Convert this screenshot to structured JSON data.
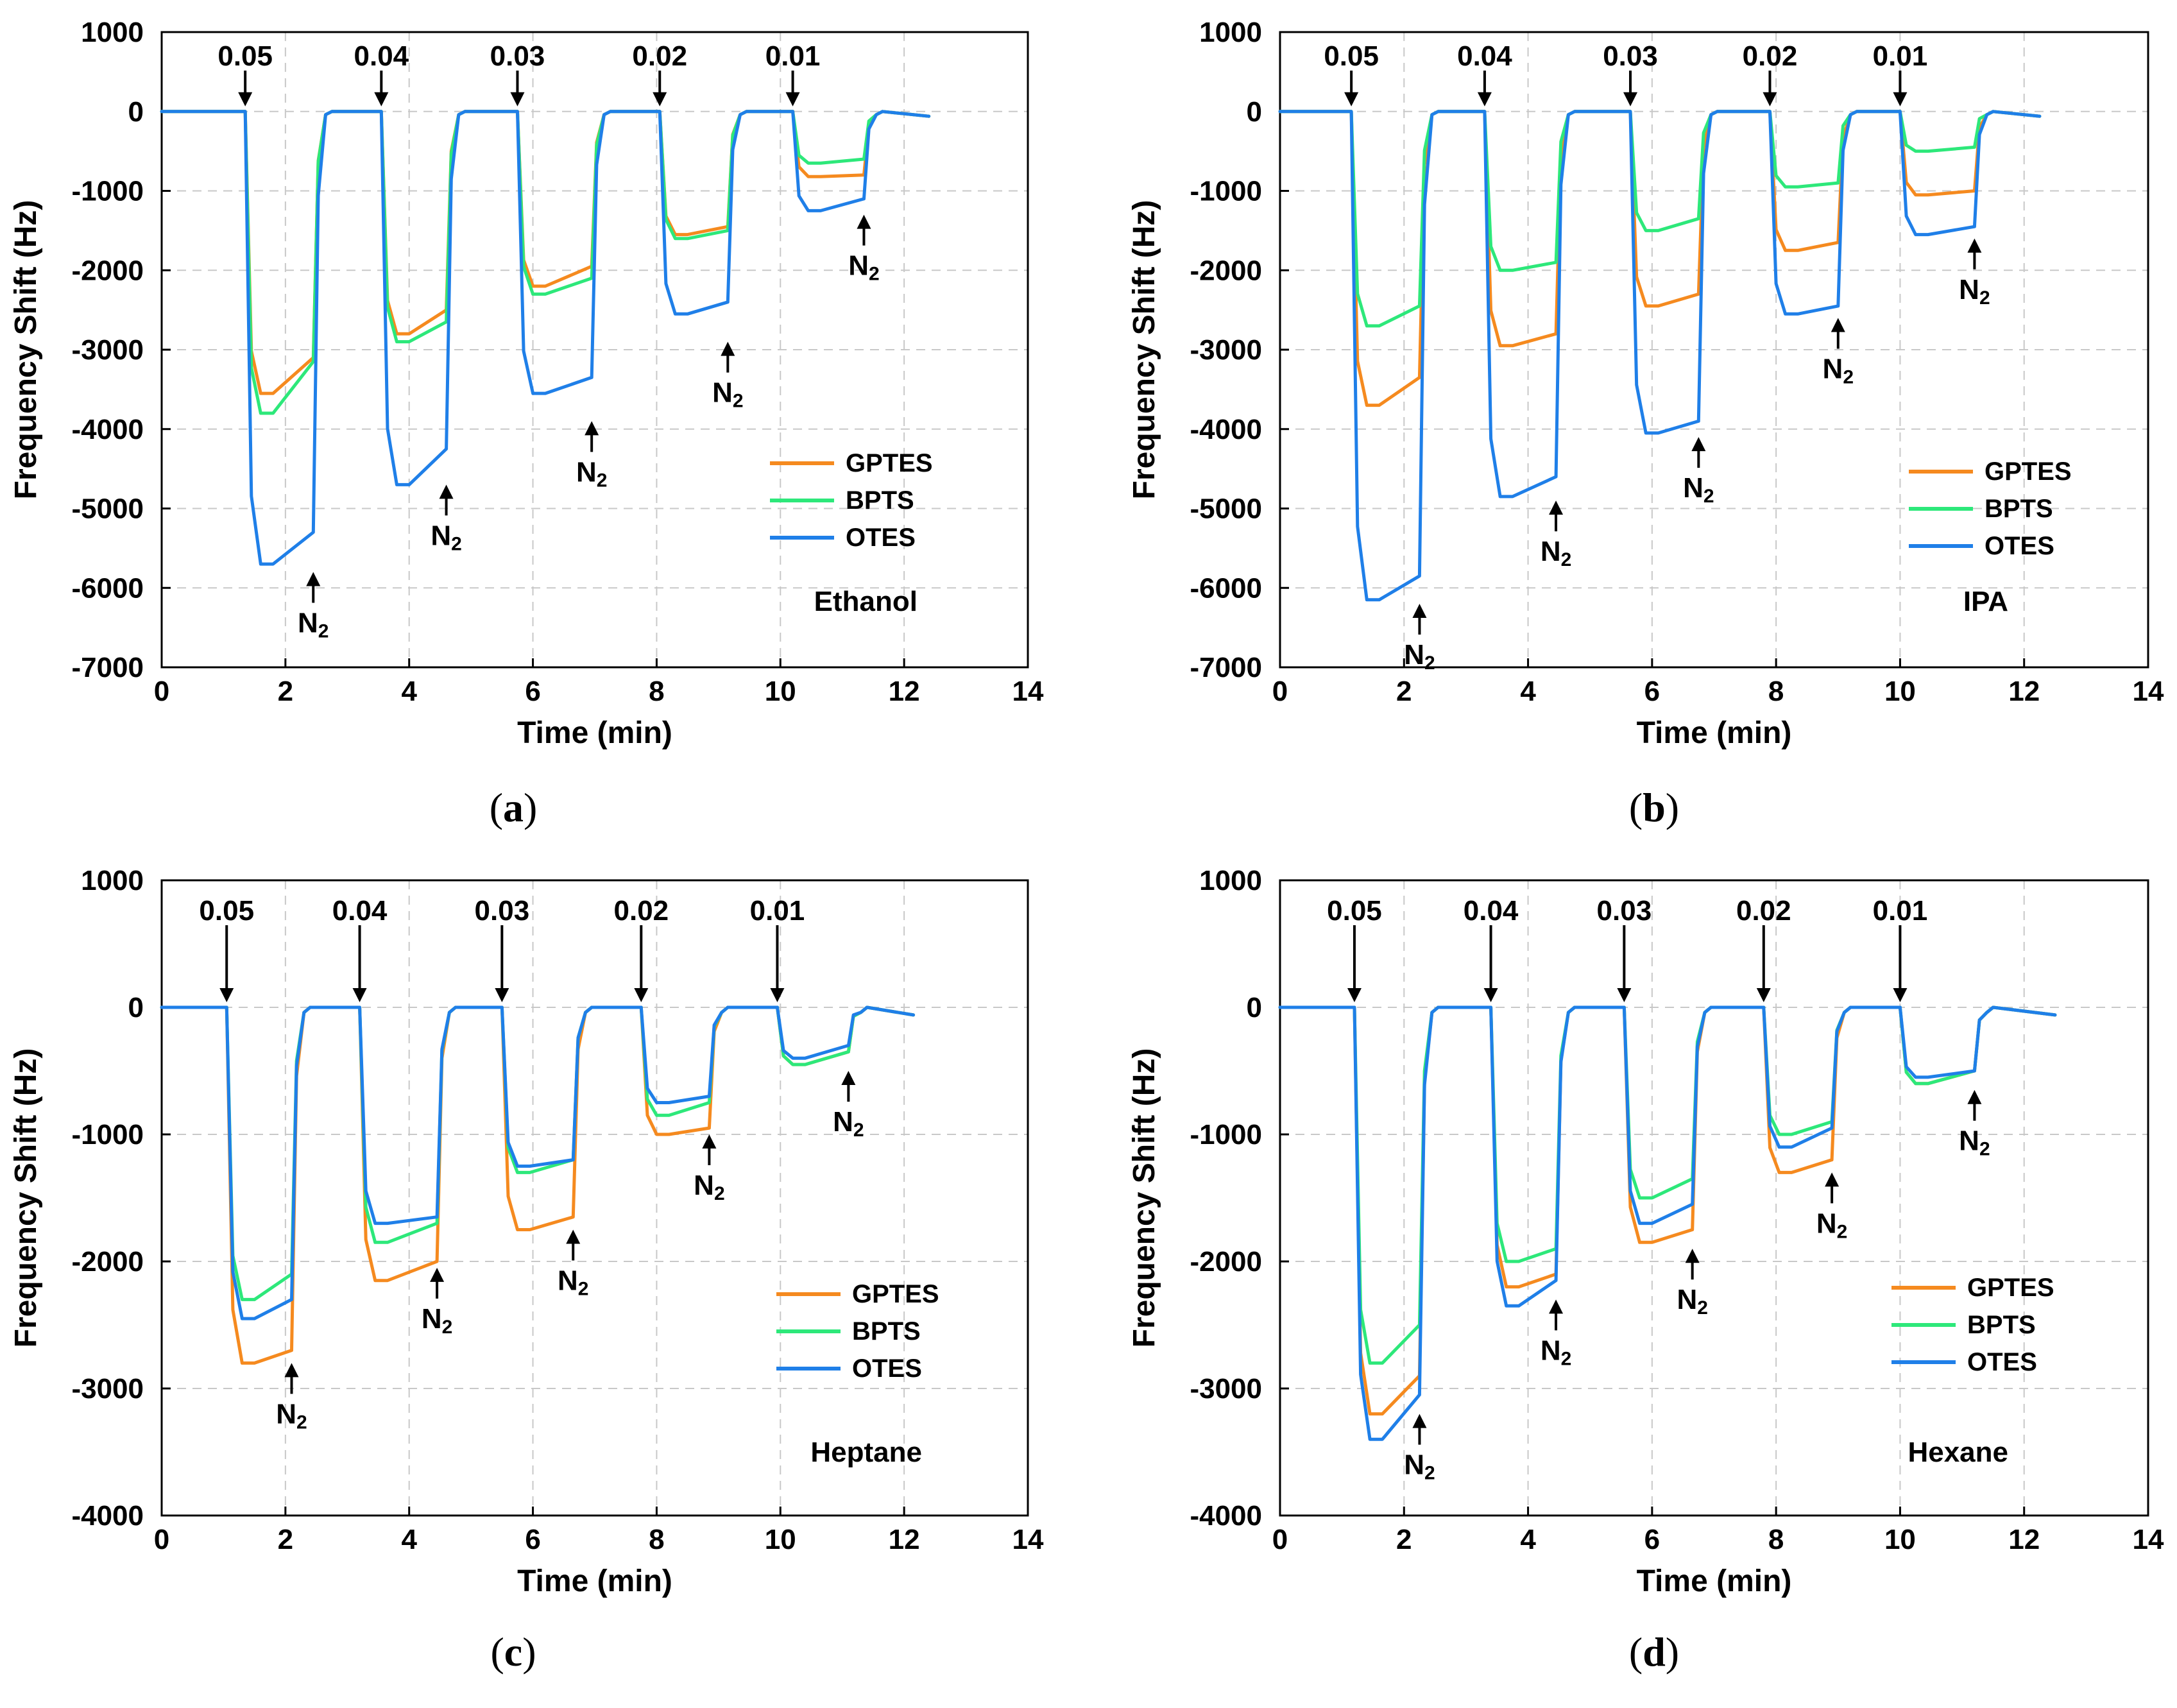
{
  "colors": {
    "GPTES": "#f58a1f",
    "BPTS": "#2de87a",
    "OTES": "#1f7fe8"
  },
  "chart_data": [
    {
      "panel": "(a)",
      "type": "line",
      "solvent": "Ethanol",
      "xlabel": "Time (min)",
      "ylabel": "Frequency Shift (Hz)",
      "xlim": [
        0,
        14
      ],
      "ylim": [
        -7000,
        1000
      ],
      "xticks": [
        0,
        2,
        4,
        6,
        8,
        10,
        12,
        14
      ],
      "yticks": [
        1000,
        0,
        -1000,
        -2000,
        -3000,
        -4000,
        -5000,
        -6000,
        -7000
      ],
      "concentrations": [
        "0.05",
        "0.04",
        "0.03",
        "0.02",
        "0.01"
      ],
      "purge_label": "N2",
      "legend": [
        "GPTES",
        "BPTS",
        "OTES"
      ],
      "on_times": [
        1.35,
        3.55,
        5.75,
        8.05,
        10.2
      ],
      "off_times": [
        2.45,
        4.6,
        6.95,
        9.15,
        11.35
      ],
      "purge_arrow_y": [
        -5800,
        -4700,
        -3900,
        -2900,
        -1300
      ],
      "series": [
        {
          "name": "GPTES",
          "plateau_start": [
            -3550,
            -2800,
            -2200,
            -1550,
            -820
          ],
          "plateau_end": [
            -3100,
            -2500,
            -1950,
            -1450,
            -800
          ]
        },
        {
          "name": "BPTS",
          "plateau_start": [
            -3800,
            -2900,
            -2300,
            -1600,
            -650
          ],
          "plateau_end": [
            -3150,
            -2650,
            -2100,
            -1500,
            -600
          ]
        },
        {
          "name": "OTES",
          "plateau_start": [
            -5700,
            -4700,
            -3550,
            -2550,
            -1250
          ],
          "plateau_end": [
            -5300,
            -4250,
            -3350,
            -2400,
            -1100
          ]
        }
      ],
      "end_time": 12.4
    },
    {
      "panel": "(b)",
      "type": "line",
      "solvent": "IPA",
      "xlabel": "Time (min)",
      "ylabel": "Frequency Shift (Hz)",
      "xlim": [
        0,
        14
      ],
      "ylim": [
        -7000,
        1000
      ],
      "xticks": [
        0,
        2,
        4,
        6,
        8,
        10,
        12,
        14
      ],
      "yticks": [
        1000,
        0,
        -1000,
        -2000,
        -3000,
        -4000,
        -5000,
        -6000,
        -7000
      ],
      "concentrations": [
        "0.05",
        "0.04",
        "0.03",
        "0.02",
        "0.01"
      ],
      "purge_label": "N2",
      "legend": [
        "GPTES",
        "BPTS",
        "OTES"
      ],
      "on_times": [
        1.15,
        3.3,
        5.65,
        7.9,
        10.0
      ],
      "off_times": [
        2.25,
        4.45,
        6.75,
        9.0,
        11.2
      ],
      "purge_arrow_y": [
        -6200,
        -4900,
        -4100,
        -2600,
        -1600
      ],
      "series": [
        {
          "name": "GPTES",
          "plateau_start": [
            -3700,
            -2950,
            -2450,
            -1750,
            -1050
          ],
          "plateau_end": [
            -3350,
            -2800,
            -2300,
            -1650,
            -1000
          ]
        },
        {
          "name": "BPTS",
          "plateau_start": [
            -2700,
            -2000,
            -1500,
            -950,
            -500
          ],
          "plateau_end": [
            -2450,
            -1900,
            -1350,
            -900,
            -450
          ]
        },
        {
          "name": "OTES",
          "plateau_start": [
            -6150,
            -4850,
            -4050,
            -2550,
            -1550
          ],
          "plateau_end": [
            -5850,
            -4600,
            -3900,
            -2450,
            -1450
          ]
        }
      ],
      "end_time": 12.25
    },
    {
      "panel": "(c)",
      "type": "line",
      "solvent": "Heptane",
      "xlabel": "Time (min)",
      "ylabel": "Frequency Shift (Hz)",
      "xlim": [
        0,
        14
      ],
      "ylim": [
        -4000,
        1000
      ],
      "xticks": [
        0,
        2,
        4,
        6,
        8,
        10,
        12,
        14
      ],
      "yticks": [
        1000,
        0,
        -1000,
        -2000,
        -3000,
        -4000
      ],
      "concentrations": [
        "0.05",
        "0.04",
        "0.03",
        "0.02",
        "0.01"
      ],
      "purge_label": "N2",
      "legend": [
        "GPTES",
        "BPTS",
        "OTES"
      ],
      "on_times": [
        1.05,
        3.2,
        5.5,
        7.75,
        9.95
      ],
      "off_times": [
        2.1,
        4.45,
        6.65,
        8.85,
        11.1
      ],
      "purge_arrow_y": [
        -2800,
        -2050,
        -1750,
        -1000,
        -500
      ],
      "series": [
        {
          "name": "GPTES",
          "plateau_start": [
            -2800,
            -2150,
            -1750,
            -1000,
            -450
          ],
          "plateau_end": [
            -2700,
            -2000,
            -1650,
            -950,
            -350
          ]
        },
        {
          "name": "BPTS",
          "plateau_start": [
            -2300,
            -1850,
            -1300,
            -850,
            -450
          ],
          "plateau_end": [
            -2100,
            -1700,
            -1200,
            -750,
            -350
          ]
        },
        {
          "name": "OTES",
          "plateau_start": [
            -2450,
            -1700,
            -1250,
            -750,
            -400
          ],
          "plateau_end": [
            -2300,
            -1650,
            -1200,
            -700,
            -300
          ]
        }
      ],
      "end_time": 12.15
    },
    {
      "panel": "(d)",
      "type": "line",
      "solvent": "Hexane",
      "xlabel": "Time (min)",
      "ylabel": "Frequency Shift (Hz)",
      "xlim": [
        0,
        14
      ],
      "ylim": [
        -4000,
        1000
      ],
      "xticks": [
        0,
        2,
        4,
        6,
        8,
        10,
        12,
        14
      ],
      "yticks": [
        1000,
        0,
        -1000,
        -2000,
        -3000,
        -4000
      ],
      "concentrations": [
        "0.05",
        "0.04",
        "0.03",
        "0.02",
        "0.01"
      ],
      "purge_label": "N2",
      "legend": [
        "GPTES",
        "BPTS",
        "OTES"
      ],
      "on_times": [
        1.2,
        3.4,
        5.55,
        7.8,
        10.0
      ],
      "off_times": [
        2.25,
        4.45,
        6.65,
        8.9,
        11.2
      ],
      "purge_arrow_y": [
        -3200,
        -2300,
        -1900,
        -1300,
        -650
      ],
      "series": [
        {
          "name": "GPTES",
          "plateau_start": [
            -3200,
            -2200,
            -1850,
            -1300,
            -600
          ],
          "plateau_end": [
            -2900,
            -2100,
            -1750,
            -1200,
            -500
          ]
        },
        {
          "name": "BPTS",
          "plateau_start": [
            -2800,
            -2000,
            -1500,
            -1000,
            -600
          ],
          "plateau_end": [
            -2500,
            -1900,
            -1350,
            -900,
            -500
          ]
        },
        {
          "name": "OTES",
          "plateau_start": [
            -3400,
            -2350,
            -1700,
            -1100,
            -550
          ],
          "plateau_end": [
            -3050,
            -2150,
            -1550,
            -950,
            -500
          ]
        }
      ],
      "end_time": 12.5
    }
  ]
}
